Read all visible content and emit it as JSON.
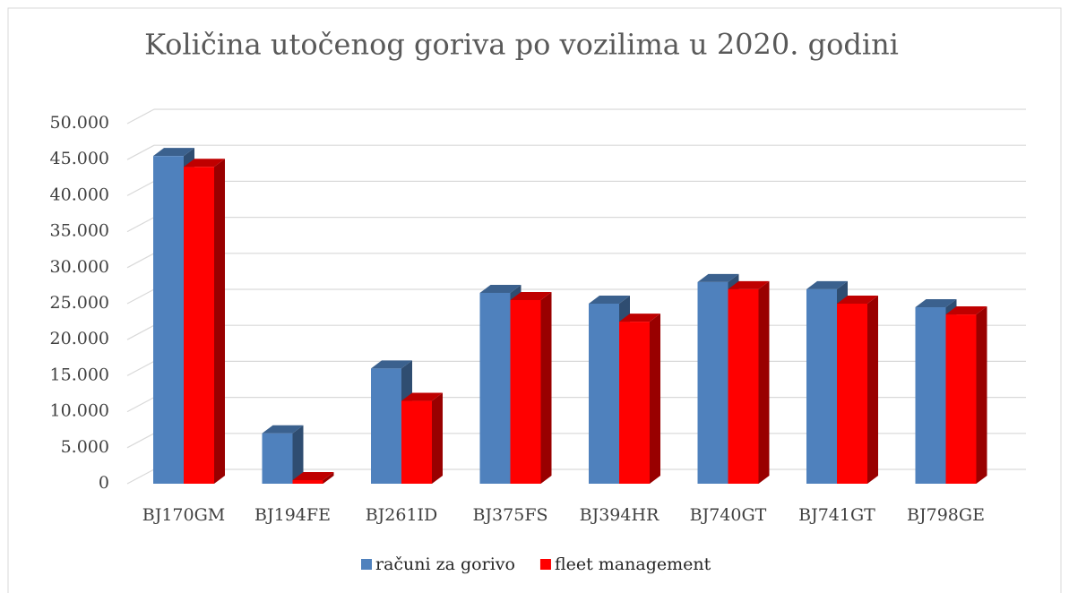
{
  "chart_data": {
    "type": "bar3d",
    "title": "Količina utočenog goriva po vozilima u 2020. godini",
    "categories": [
      "BJ170GM",
      "BJ194FE",
      "BJ261ID",
      "BJ375FS",
      "BJ394HR",
      "BJ740GT",
      "BJ741GT",
      "BJ798GE"
    ],
    "series": [
      {
        "name": "računi za gorivo",
        "color": "#4f81bd",
        "values": [
          45500,
          7000,
          16000,
          26500,
          25000,
          28000,
          27000,
          24500
        ]
      },
      {
        "name": "fleet management",
        "color": "#ff0000",
        "values": [
          44000,
          500,
          11500,
          25500,
          22500,
          27000,
          25000,
          23500
        ]
      }
    ],
    "ylim": [
      0,
      50000
    ],
    "yticks": [
      0,
      {
        "value": 5000,
        "label": "5.000"
      },
      {
        "value": 10000,
        "label": "10.000"
      },
      {
        "value": 15000,
        "label": "15.000"
      },
      {
        "value": 20000,
        "label": "20.000"
      },
      {
        "value": 25000,
        "label": "25.000"
      },
      {
        "value": 30000,
        "label": "30.000"
      },
      {
        "value": 35000,
        "label": "35.000"
      },
      {
        "value": 40000,
        "label": "40.000"
      },
      {
        "value": 45000,
        "label": "45.000"
      },
      {
        "value": 50000,
        "label": "50.000"
      }
    ],
    "grid": true,
    "legend": "bottom"
  }
}
